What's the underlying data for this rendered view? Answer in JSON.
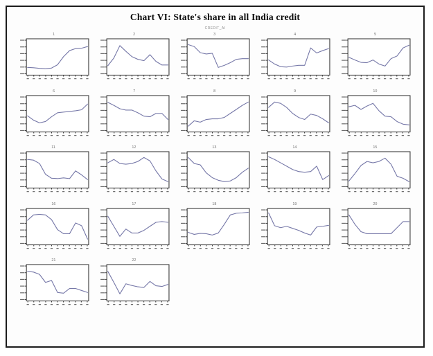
{
  "title": "Chart VI: State's share in all India credit",
  "subtitle": "CREDIT_AI",
  "colors": {
    "line": "#7678a8",
    "box_border": "#3c3c3c",
    "tick": "#6a6a6a",
    "frame_border": "#1c1c1c"
  },
  "chart_data": {
    "type": "line",
    "title": "Chart VI: State's share in all India credit",
    "subtitle": "CREDIT_AI",
    "layout": "small multiples, 5 columns x 5 rows (22 panels), one line series per panel",
    "legend": "none",
    "grid": "off",
    "x_tick_count": 11,
    "y_tick_count": 6,
    "axis_note": "axis tick labels are illegible at source resolution; series values below are relative heights 0-100 within each panel",
    "panels": [
      {
        "label": "1",
        "values": [
          20,
          19,
          17,
          16,
          18,
          28,
          52,
          70,
          76,
          77,
          82
        ]
      },
      {
        "label": "2",
        "values": [
          25,
          48,
          85,
          68,
          52,
          44,
          40,
          58,
          38,
          27,
          27
        ]
      },
      {
        "label": "3",
        "values": [
          88,
          82,
          64,
          60,
          62,
          20,
          26,
          34,
          44,
          46,
          46
        ]
      },
      {
        "label": "4",
        "values": [
          42,
          30,
          22,
          21,
          24,
          26,
          26,
          78,
          63,
          70,
          76
        ]
      },
      {
        "label": "5",
        "values": [
          50,
          42,
          35,
          34,
          42,
          30,
          24,
          46,
          54,
          78,
          86
        ]
      },
      {
        "label": "6",
        "values": [
          45,
          32,
          24,
          28,
          42,
          54,
          56,
          58,
          60,
          63,
          80
        ]
      },
      {
        "label": "7",
        "values": [
          85,
          76,
          66,
          62,
          62,
          54,
          44,
          42,
          52,
          52,
          34
        ]
      },
      {
        "label": "8",
        "values": [
          14,
          30,
          26,
          34,
          36,
          36,
          40,
          52,
          64,
          76,
          86
        ]
      },
      {
        "label": "9",
        "values": [
          70,
          86,
          82,
          70,
          52,
          40,
          34,
          50,
          46,
          36,
          24
        ]
      },
      {
        "label": "10",
        "values": [
          72,
          76,
          64,
          74,
          82,
          60,
          44,
          42,
          28,
          20,
          18
        ]
      },
      {
        "label": "11",
        "values": [
          82,
          80,
          70,
          38,
          26,
          25,
          27,
          25,
          48,
          36,
          22
        ]
      },
      {
        "label": "12",
        "values": [
          72,
          82,
          70,
          68,
          70,
          76,
          88,
          78,
          48,
          24,
          16
        ]
      },
      {
        "label": "13",
        "values": [
          88,
          70,
          66,
          42,
          28,
          20,
          16,
          18,
          28,
          44,
          56
        ]
      },
      {
        "label": "14",
        "values": [
          90,
          82,
          72,
          62,
          52,
          46,
          44,
          46,
          62,
          22,
          34
        ]
      },
      {
        "label": "15",
        "values": [
          18,
          40,
          64,
          76,
          72,
          76,
          86,
          68,
          32,
          26,
          16
        ]
      },
      {
        "label": "16",
        "values": [
          70,
          86,
          88,
          86,
          72,
          42,
          30,
          30,
          62,
          54,
          14
        ]
      },
      {
        "label": "17",
        "values": [
          82,
          52,
          22,
          44,
          32,
          32,
          40,
          52,
          64,
          66,
          64
        ]
      },
      {
        "label": "18",
        "values": [
          34,
          28,
          31,
          30,
          26,
          32,
          58,
          86,
          91,
          92,
          94
        ]
      },
      {
        "label": "19",
        "values": [
          92,
          54,
          48,
          52,
          46,
          40,
          32,
          26,
          50,
          52,
          55
        ]
      },
      {
        "label": "20",
        "values": [
          86,
          58,
          36,
          30,
          30,
          30,
          30,
          30,
          48,
          66,
          66
        ]
      },
      {
        "label": "21",
        "values": [
          85,
          83,
          76,
          52,
          58,
          22,
          20,
          34,
          34,
          28,
          22
        ]
      },
      {
        "label": "22",
        "values": [
          85,
          52,
          18,
          48,
          43,
          39,
          37,
          55,
          42,
          40,
          46
        ]
      }
    ]
  }
}
